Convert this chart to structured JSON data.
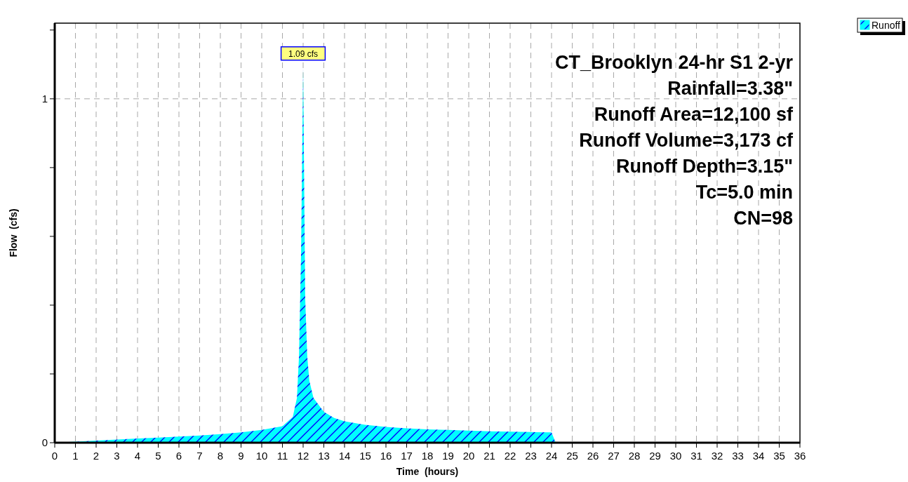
{
  "chart_data": {
    "type": "area",
    "title": "CT_Brooklyn 24-hr S1 2-yr",
    "xlabel": "Time  (hours)",
    "ylabel": "Flow  (cfs)",
    "annotations": [
      "Rainfall=3.38\"",
      "Runoff Area=12,100 sf",
      "Runoff Volume=3,173 cf",
      "Runoff Depth=3.15\"",
      "Tc=5.0 min",
      "CN=98",
      {
        "text": "1.09 cfs",
        "x": 12.0,
        "y": 1.09
      }
    ],
    "x": [
      0,
      1,
      2,
      3,
      4,
      5,
      6,
      7,
      8,
      9,
      10,
      11,
      11.5,
      11.7,
      11.8,
      11.9,
      12.0,
      12.05,
      12.1,
      12.2,
      12.3,
      12.5,
      13,
      13.5,
      14,
      15,
      16,
      17,
      18,
      19,
      20,
      21,
      22,
      23,
      24,
      24.2,
      25,
      36
    ],
    "series": [
      {
        "name": "Runoff",
        "color": "#00ffff",
        "values": [
          0,
          0.003,
          0.006,
          0.009,
          0.012,
          0.015,
          0.018,
          0.021,
          0.025,
          0.03,
          0.037,
          0.048,
          0.075,
          0.13,
          0.25,
          0.55,
          1.09,
          0.75,
          0.42,
          0.25,
          0.18,
          0.13,
          0.09,
          0.072,
          0.062,
          0.052,
          0.046,
          0.042,
          0.039,
          0.037,
          0.035,
          0.033,
          0.032,
          0.031,
          0.03,
          0,
          0,
          0
        ]
      }
    ],
    "xlim": [
      0,
      36
    ],
    "xticks": [
      0,
      1,
      2,
      3,
      4,
      5,
      6,
      7,
      8,
      9,
      10,
      11,
      12,
      13,
      14,
      15,
      16,
      17,
      18,
      19,
      20,
      21,
      22,
      23,
      24,
      25,
      26,
      27,
      28,
      29,
      30,
      31,
      32,
      33,
      34,
      35,
      36
    ],
    "ylim": [
      0,
      1.22
    ],
    "yticks": [
      0,
      {
        "value": 0.2,
        "label": null
      },
      {
        "value": 0.4,
        "label": null
      },
      {
        "value": 0.6,
        "label": null
      },
      {
        "value": 0.8,
        "label": null
      },
      1,
      {
        "value": 1.2,
        "label": null
      }
    ],
    "grid": true,
    "legend": "top right"
  }
}
